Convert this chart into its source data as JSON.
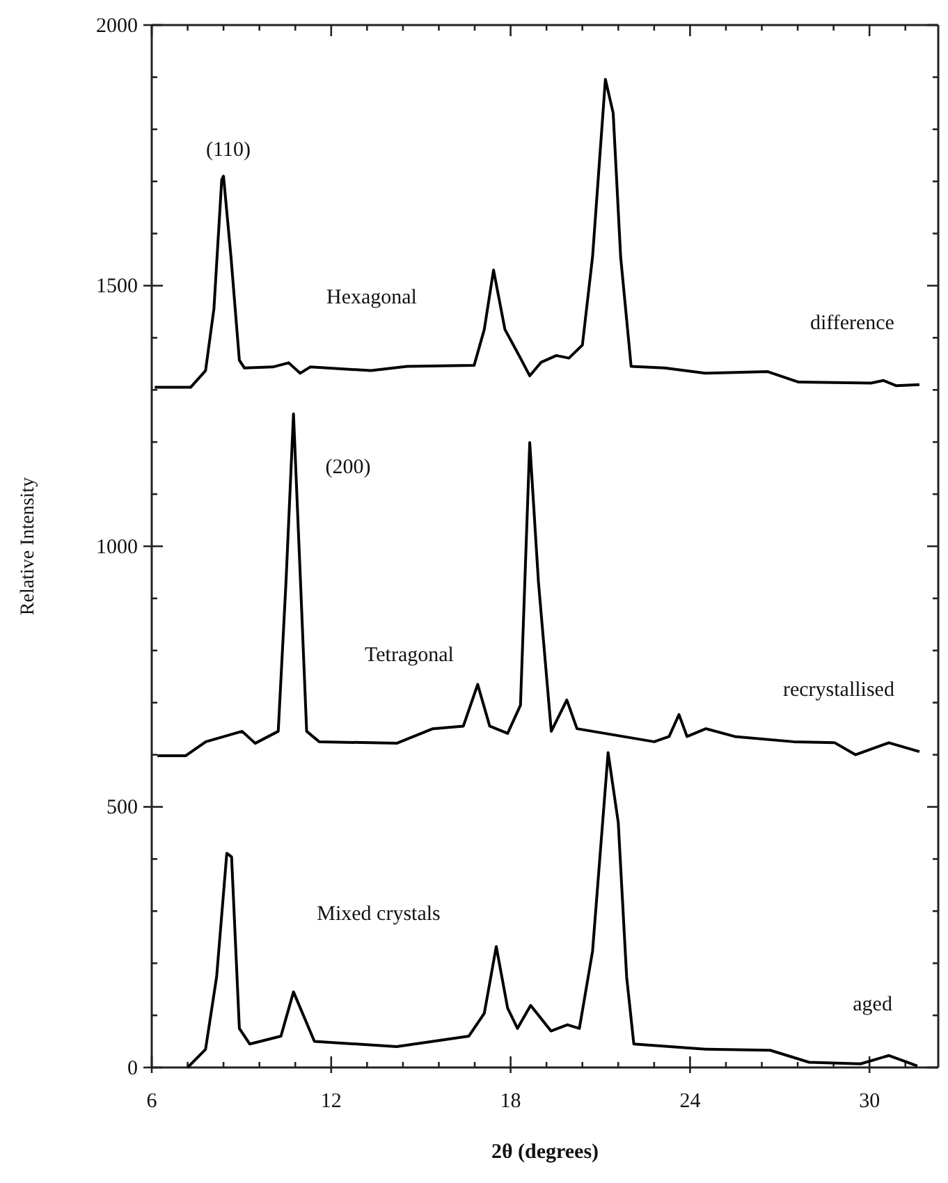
{
  "chart_data": {
    "type": "line",
    "xlabel": "2θ  (degrees)",
    "ylabel": "Relative Intensity",
    "xlim": [
      6,
      32.3
    ],
    "ylim": [
      0,
      2000
    ],
    "xticks": [
      6,
      {
        "value": 7.2,
        "label": null
      },
      {
        "value": 8.4,
        "label": null
      },
      {
        "value": 9.6,
        "label": null
      },
      {
        "value": 10.8,
        "label": null
      },
      12,
      {
        "value": 13.2,
        "label": null
      },
      {
        "value": 14.4,
        "label": null
      },
      {
        "value": 15.6,
        "label": null
      },
      {
        "value": 16.8,
        "label": null
      },
      18,
      {
        "value": 19.2,
        "label": null
      },
      {
        "value": 20.4,
        "label": null
      },
      {
        "value": 21.6,
        "label": null
      },
      {
        "value": 22.8,
        "label": null
      },
      24,
      {
        "value": 25.2,
        "label": null
      },
      {
        "value": 26.4,
        "label": null
      },
      {
        "value": 27.6,
        "label": null
      },
      {
        "value": 28.8,
        "label": null
      },
      30,
      {
        "value": 31.2,
        "label": null
      }
    ],
    "yticks": [
      0,
      {
        "value": 100,
        "label": null
      },
      {
        "value": 200,
        "label": null
      },
      {
        "value": 300,
        "label": null
      },
      {
        "value": 400,
        "label": null
      },
      500,
      {
        "value": 600,
        "label": null
      },
      {
        "value": 700,
        "label": null
      },
      {
        "value": 800,
        "label": null
      },
      {
        "value": 900,
        "label": null
      },
      1000,
      {
        "value": 1100,
        "label": null
      },
      {
        "value": 1200,
        "label": null
      },
      {
        "value": 1300,
        "label": null
      },
      {
        "value": 1400,
        "label": null
      },
      1500,
      {
        "value": 1600,
        "label": null
      },
      {
        "value": 1700,
        "label": null
      },
      {
        "value": 1800,
        "label": null
      },
      {
        "value": 1900,
        "label": null
      },
      2000
    ],
    "grid": false,
    "marker": "none",
    "line_style": "solid",
    "series": [
      {
        "name": "difference",
        "color": "#000000",
        "x": [
          6.1,
          7.3,
          7.8,
          8.08,
          8.34,
          8.4,
          8.65,
          8.93,
          9.1,
          10.05,
          10.58,
          10.96,
          11.3,
          13.33,
          14.54,
          16.78,
          17.12,
          17.43,
          17.81,
          18.33,
          18.64,
          19.02,
          19.53,
          19.95,
          20.4,
          20.74,
          21.17,
          21.43,
          21.68,
          22.03,
          23.15,
          24.5,
          26.6,
          27.63,
          30.05,
          30.47,
          30.9,
          31.67
        ],
        "values": [
          1305,
          1305,
          1337,
          1456,
          1703,
          1710,
          1555,
          1357,
          1342,
          1344,
          1352,
          1332,
          1344,
          1337,
          1345,
          1347,
          1416,
          1530,
          1416,
          1361,
          1327,
          1353,
          1366,
          1361,
          1386,
          1555,
          1896,
          1831,
          1555,
          1345,
          1342,
          1332,
          1335,
          1315,
          1313,
          1318,
          1308,
          1310
        ]
      },
      {
        "name": "recrystallised",
        "color": "#000000",
        "x": [
          6.19,
          7.13,
          7.81,
          9.02,
          9.46,
          10.23,
          10.49,
          10.74,
          10.96,
          11.18,
          11.6,
          14.19,
          15.4,
          16.42,
          16.9,
          17.3,
          17.9,
          18.33,
          18.64,
          18.93,
          19.36,
          19.88,
          20.22,
          22.8,
          23.3,
          23.63,
          23.9,
          24.53,
          25.5,
          27.46,
          28.84,
          29.53,
          30.65,
          31.67
        ],
        "values": [
          598,
          598,
          625,
          645,
          622,
          645,
          932,
          1254,
          952,
          645,
          625,
          622,
          650,
          655,
          735,
          655,
          641,
          695,
          1199,
          932,
          645,
          705,
          650,
          625,
          635,
          677,
          635,
          650,
          635,
          625,
          623,
          600,
          623,
          606
        ]
      },
      {
        "name": "aged",
        "color": "#000000",
        "x": [
          7.2,
          7.8,
          8.17,
          8.51,
          8.67,
          8.93,
          9.28,
          10.32,
          10.74,
          11.44,
          14.19,
          16.6,
          17.12,
          17.52,
          17.9,
          18.23,
          18.67,
          19.35,
          19.9,
          20.3,
          20.74,
          21.26,
          21.6,
          21.88,
          22.12,
          24.53,
          26.68,
          27.98,
          29.7,
          30.65,
          31.6
        ],
        "values": [
          0,
          35,
          174,
          411,
          404,
          75,
          45,
          60,
          145,
          50,
          40,
          60,
          104,
          232,
          114,
          75,
          119,
          70,
          82,
          75,
          223,
          604,
          470,
          174,
          45,
          35,
          33,
          10,
          7,
          23,
          3
        ]
      }
    ],
    "annotations": [
      "(110)",
      "Hexagonal",
      "(200)",
      "Tetragonal",
      "Mixed crystals"
    ]
  }
}
